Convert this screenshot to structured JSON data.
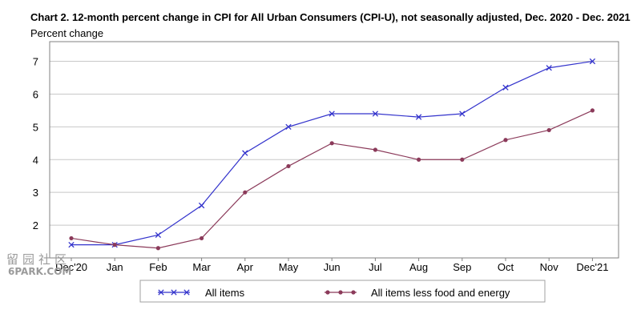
{
  "chart_data": {
    "type": "line",
    "title": "Chart 2. 12-month percent change in CPI for All Urban Consumers (CPI-U), not seasonally adjusted, Dec. 2020 - Dec. 2021",
    "ylabel": "Percent change",
    "xlabel": "",
    "categories": [
      "Dec'20",
      "Jan",
      "Feb",
      "Mar",
      "Apr",
      "May",
      "Jun",
      "Jul",
      "Aug",
      "Sep",
      "Oct",
      "Nov",
      "Dec'21"
    ],
    "yticks": [
      2,
      3,
      4,
      5,
      6,
      7
    ],
    "ylim": [
      1,
      7.6
    ],
    "grid": true,
    "legend_position": "bottom",
    "series": [
      {
        "name": "All items",
        "values": [
          1.4,
          1.4,
          1.7,
          2.6,
          4.2,
          5.0,
          5.4,
          5.4,
          5.3,
          5.4,
          6.2,
          6.8,
          7.0
        ],
        "color": "#3333cc",
        "marker": "x"
      },
      {
        "name": "All items less food and energy",
        "values": [
          1.6,
          1.4,
          1.3,
          1.6,
          3.0,
          3.8,
          4.5,
          4.3,
          4.0,
          4.0,
          4.6,
          4.9,
          5.5
        ],
        "color": "#8b3a5a",
        "marker": "dot"
      }
    ]
  },
  "watermark": {
    "glyphs": "留园社区",
    "text": "6PARK.COM"
  }
}
